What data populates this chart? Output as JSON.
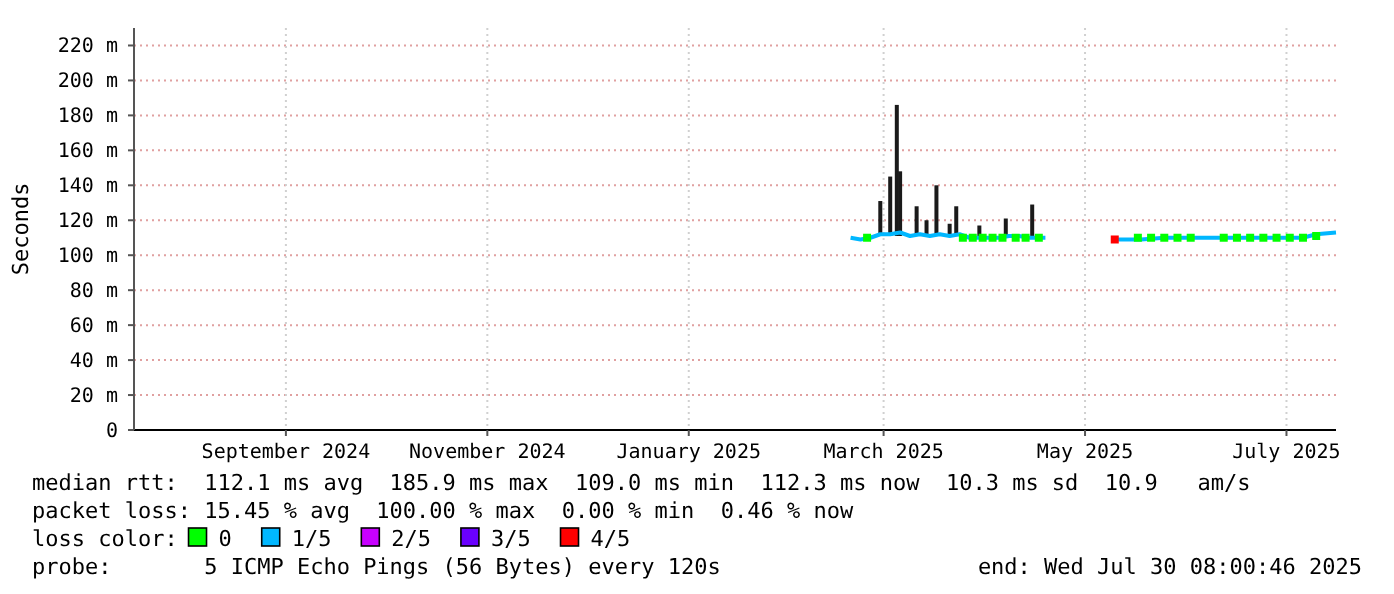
{
  "chart_data": {
    "type": "line",
    "ylabel": "Seconds",
    "legend_title": "loss color:",
    "legend": "bottom",
    "grid": true,
    "xlim": [
      "2024-07-31",
      "2025-07-30"
    ],
    "xticks": [
      {
        "value": "2024-09-15",
        "label": "September 2024"
      },
      {
        "value": "2024-11-15",
        "label": "November 2024"
      },
      {
        "value": "2025-01-15",
        "label": "January 2025"
      },
      {
        "value": "2025-03-15",
        "label": "March 2025"
      },
      {
        "value": "2025-05-15",
        "label": "May 2025"
      },
      {
        "value": "2025-07-15",
        "label": "July 2025"
      }
    ],
    "ylim": [
      0,
      230
    ],
    "yticks": [
      0,
      {
        "value": 20,
        "label": "20 m"
      },
      {
        "value": 40,
        "label": "40 m"
      },
      {
        "value": 60,
        "label": "60 m"
      },
      {
        "value": 80,
        "label": "80 m"
      },
      {
        "value": 100,
        "label": "100 m"
      },
      {
        "value": 120,
        "label": "120 m"
      },
      {
        "value": 140,
        "label": "140 m"
      },
      {
        "value": 160,
        "label": "160 m"
      },
      {
        "value": 180,
        "label": "180 m"
      },
      {
        "value": 200,
        "label": "200 m"
      },
      {
        "value": 220,
        "label": "220 m"
      }
    ],
    "series": [
      {
        "type": "bar",
        "color": "#1a1a1a",
        "x": [
          "2025-03-14",
          "2025-03-17",
          "2025-03-19",
          "2025-03-20",
          "2025-03-25",
          "2025-03-28",
          "2025-03-31",
          "2025-04-04",
          "2025-04-06",
          "2025-04-13",
          "2025-04-21",
          "2025-04-29"
        ],
        "base": [
          111,
          111,
          111,
          111,
          111,
          111,
          111,
          111,
          111,
          111,
          111,
          111
        ],
        "values": [
          20,
          34,
          75,
          37,
          17,
          9,
          29,
          7,
          17,
          6,
          10,
          18
        ]
      },
      {
        "type": "scatter",
        "name": "0",
        "color": "#00ff00",
        "marker": "square",
        "x": [
          "2025-03-10",
          "2025-04-08",
          "2025-04-11",
          "2025-04-14",
          "2025-04-17",
          "2025-04-20",
          "2025-04-24",
          "2025-04-27",
          "2025-05-01",
          "2025-05-31",
          "2025-06-04",
          "2025-06-08",
          "2025-06-12",
          "2025-06-16",
          "2025-06-26",
          "2025-06-30",
          "2025-07-04",
          "2025-07-08",
          "2025-07-12",
          "2025-07-16",
          "2025-07-20",
          "2025-07-24"
        ],
        "values": [
          110,
          110,
          110,
          110,
          110,
          110,
          110,
          110,
          110,
          110,
          110,
          110,
          110,
          110,
          110,
          110,
          110,
          110,
          110,
          110,
          110,
          111
        ]
      },
      {
        "name": "1/5",
        "color": "#00b7ff",
        "x": [
          "2025-03-05",
          "2025-03-08",
          "2025-03-11",
          "2025-03-14",
          "2025-03-17",
          "2025-03-20",
          "2025-03-23",
          "2025-03-26",
          "2025-03-29",
          "2025-04-01",
          "2025-04-04",
          "2025-04-07",
          "2025-04-10",
          "2025-04-13",
          "2025-04-16",
          "2025-04-19",
          "2025-04-22",
          "2025-04-25",
          "2025-04-28",
          "2025-05-01",
          "2025-05-03",
          "2025-05-14",
          "2025-05-25",
          "2025-06-01",
          "2025-06-08",
          "2025-06-15",
          "2025-06-22",
          "2025-06-29",
          "2025-07-06",
          "2025-07-13",
          "2025-07-20",
          "2025-07-24",
          "2025-07-30"
        ],
        "values": [
          110,
          109,
          110,
          112,
          112,
          113,
          111,
          112,
          111,
          112,
          111,
          112,
          110,
          110,
          110,
          110,
          111,
          111,
          110,
          110,
          110,
          null,
          109,
          109,
          110,
          110,
          110,
          110,
          110,
          110,
          110,
          112,
          113
        ]
      },
      {
        "type": "scatter",
        "name": "2/5",
        "color": "#c800ff"
      },
      {
        "type": "scatter",
        "name": "3/5",
        "color": "#6a00ff"
      },
      {
        "type": "scatter",
        "name": "4/5",
        "color": "#ff0000",
        "marker": "square",
        "x": [
          "2025-05-24"
        ],
        "values": [
          109
        ]
      }
    ],
    "annotations": [
      "median rtt:  112.1 ms avg  185.9 ms max  109.0 ms min  112.3 ms now  10.3 ms sd  10.9   am/s",
      "packet loss: 15.45 % avg  100.00 % max  0.00 % min  0.46 % now",
      "probe:       5 ICMP Echo Pings (56 Bytes) every 120s",
      "end: Wed Jul 30 08:00:46 2025"
    ]
  }
}
